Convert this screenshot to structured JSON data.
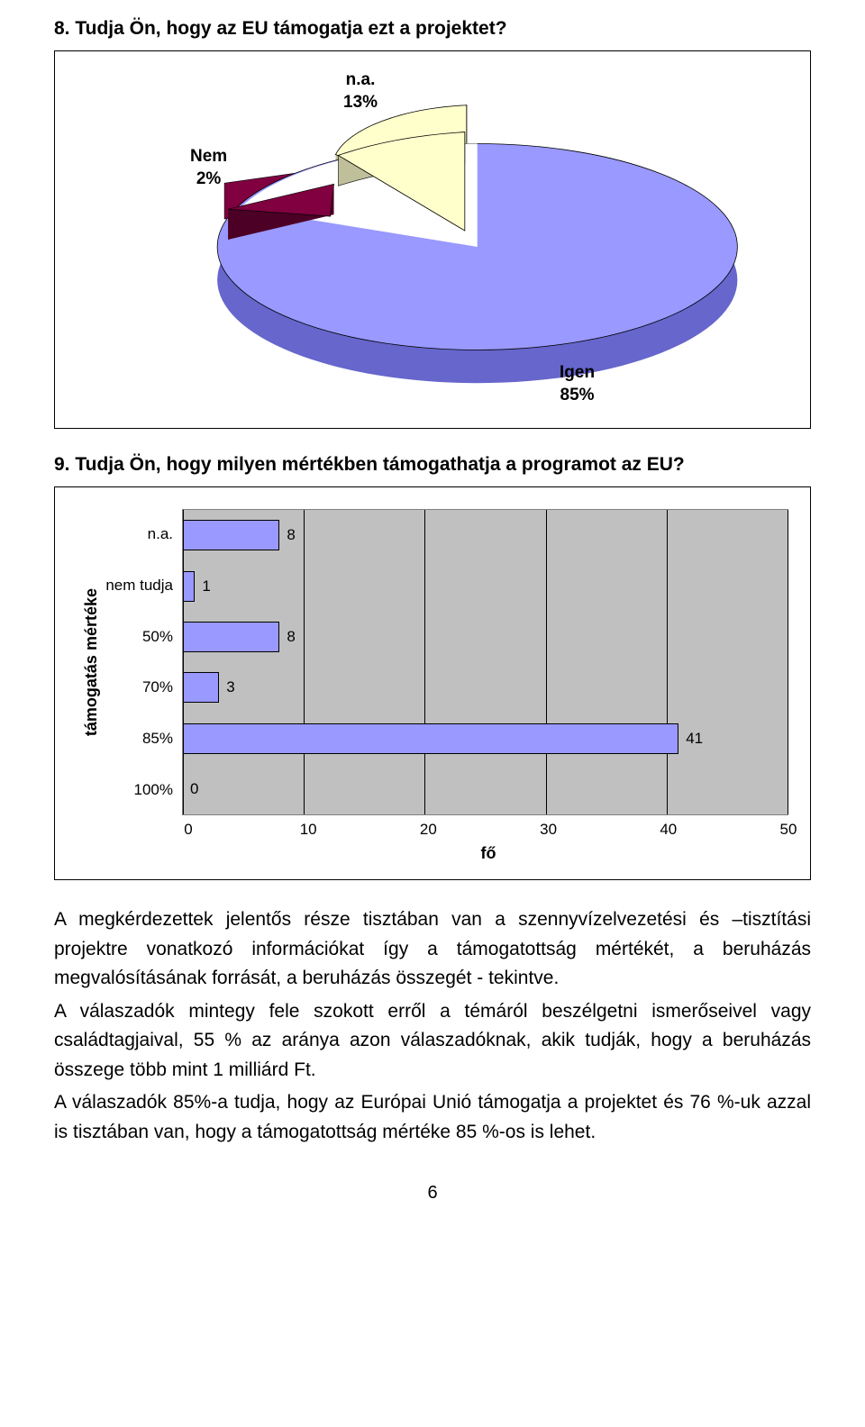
{
  "q8": {
    "title": "8. Tudja Ön, hogy az EU támogatja ezt a projektet?",
    "pie": {
      "type": "pie",
      "slices": [
        {
          "key": "igen",
          "label": "Igen",
          "pct_label": "85%",
          "color": "#9999ff",
          "side_color": "#6666cc"
        },
        {
          "key": "na",
          "label": "n.a.",
          "pct_label": "13%",
          "color": "#ffffcc",
          "side_color": "#bfbf99"
        },
        {
          "key": "nem",
          "label": "Nem",
          "pct_label": "2%",
          "color": "#800040",
          "side_color": "#4d0026"
        }
      ],
      "bg": "#ffffff"
    }
  },
  "q9": {
    "title": "9. Tudja Ön, hogy milyen mértékben támogathatja a programot az EU?",
    "bar": {
      "type": "bar-horizontal",
      "ylabel": "támogatás mértéke",
      "xlabel": "fő",
      "bg": "#c0c0c0",
      "bar_color": "#9999ff",
      "grid_color": "#000000",
      "xlim": [
        0,
        50
      ],
      "xtick_step": 10,
      "xticks": [
        "0",
        "10",
        "20",
        "30",
        "40",
        "50"
      ],
      "categories": [
        "n.a.",
        "nem tudja",
        "50%",
        "70%",
        "85%",
        "100%"
      ],
      "values": [
        8,
        1,
        8,
        3,
        41,
        0
      ]
    }
  },
  "body": {
    "p1": "A megkérdezettek jelentős része tisztában van a szennyvízelvezetési és –tisztítási projektre vonatkozó információkat így a támogatottság mértékét, a beruházás megvalósításának forrását, a beruházás összegét - tekintve.",
    "p2": "A válaszadók mintegy fele szokott erről a témáról beszélgetni ismerőseivel vagy családtagjaival, 55 % az aránya azon válaszadóknak, akik tudják, hogy a beruházás összege több mint 1 milliárd Ft.",
    "p3": "A válaszadók 85%-a tudja, hogy az Európai Unió támogatja a projektet és 76 %-uk azzal is tisztában van, hogy a támogatottság mértéke 85 %-os is lehet."
  },
  "page_number": "6"
}
